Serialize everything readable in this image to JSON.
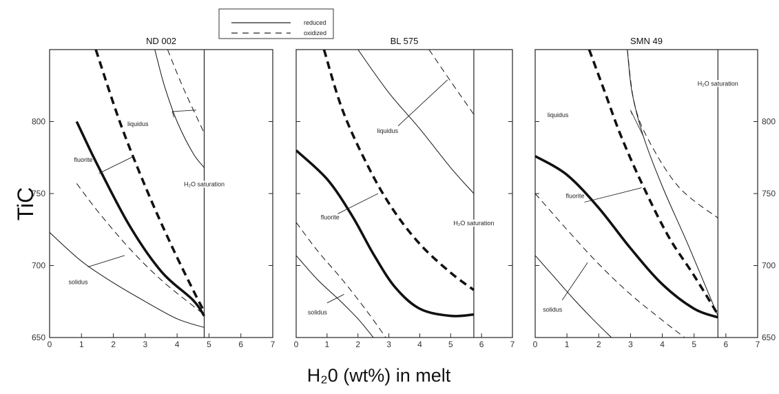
{
  "legend": {
    "reduced": "reduced",
    "oxidized": "oxidized"
  },
  "ylabel": "TiC",
  "xlabel": "H₂0 (wt%) in melt",
  "chart_data": [
    {
      "type": "line",
      "title": "ND 002",
      "xlim": [
        0,
        7
      ],
      "ylim": [
        650,
        850
      ],
      "xticks": [
        "0",
        "1",
        "2",
        "3",
        "4",
        "5",
        "6",
        "7"
      ],
      "yticks": [
        "650",
        "700",
        "750",
        "800"
      ],
      "saturation_x": 4.85,
      "series": [
        {
          "name": "fluorite",
          "style": "reduced",
          "weight": "bold",
          "points": [
            [
              0.85,
              800
            ],
            [
              1.5,
              770
            ],
            [
              2.5,
              728
            ],
            [
              3.5,
              696
            ],
            [
              4.5,
              676
            ],
            [
              4.85,
              665
            ]
          ]
        },
        {
          "name": "fluorite",
          "style": "oxidized",
          "weight": "bold",
          "points": [
            [
              1.45,
              850
            ],
            [
              2.2,
              800
            ],
            [
              3.0,
              755
            ],
            [
              3.8,
              715
            ],
            [
              4.5,
              683
            ],
            [
              4.85,
              668
            ]
          ]
        },
        {
          "name": "solidus",
          "style": "reduced",
          "weight": "thin",
          "points": [
            [
              0,
              723
            ],
            [
              1.0,
              703
            ],
            [
              2.0,
              688
            ],
            [
              3.0,
              675
            ],
            [
              4.0,
              663
            ],
            [
              4.85,
              657
            ]
          ]
        },
        {
          "name": "solidus",
          "style": "oxidized",
          "weight": "thin",
          "points": [
            [
              0.85,
              757
            ],
            [
              1.5,
              738
            ],
            [
              2.5,
              712
            ],
            [
              3.5,
              690
            ],
            [
              4.5,
              672
            ],
            [
              4.85,
              666
            ]
          ]
        },
        {
          "name": "liquidus",
          "style": "reduced",
          "weight": "thin",
          "points": [
            [
              3.3,
              850
            ],
            [
              3.6,
              825
            ],
            [
              4.0,
              800
            ],
            [
              4.5,
              778
            ],
            [
              4.85,
              768
            ]
          ]
        },
        {
          "name": "liquidus",
          "style": "oxidized",
          "weight": "thin",
          "points": [
            [
              3.7,
              850
            ],
            [
              4.2,
              823
            ],
            [
              4.85,
              792
            ]
          ]
        }
      ],
      "annotations": [
        {
          "text": "fluorite",
          "x": 1.35,
          "y": 772,
          "pointers": [
            [
              2.65,
              776
            ],
            [
              1.55,
              764
            ]
          ]
        },
        {
          "text": "solidus",
          "x": 1.2,
          "y": 687,
          "pointers": [
            [
              2.35,
              707
            ],
            [
              1.2,
              699
            ]
          ]
        },
        {
          "text": "liquidus",
          "x": 3.1,
          "y": 797,
          "pointers": [
            [
              3.9,
              803
            ],
            [
              3.85,
              807
            ],
            [
              4.6,
              808
            ]
          ]
        },
        {
          "text": "H₂O saturation",
          "x": 4.85,
          "y": 755
        }
      ]
    },
    {
      "type": "line",
      "title": "BL 575",
      "xlim": [
        0,
        7
      ],
      "ylim": [
        650,
        850
      ],
      "xticks": [
        "0",
        "1",
        "2",
        "3",
        "4",
        "5",
        "6",
        "7"
      ],
      "yticks": [
        "650",
        "700",
        "750",
        "800"
      ],
      "saturation_x": 5.75,
      "series": [
        {
          "name": "fluorite",
          "style": "reduced",
          "weight": "bold",
          "points": [
            [
              0,
              780
            ],
            [
              1.0,
              760
            ],
            [
              1.8,
              735
            ],
            [
              2.5,
              708
            ],
            [
              3.2,
              685
            ],
            [
              4.0,
              670
            ],
            [
              5.0,
              665
            ],
            [
              5.75,
              666
            ]
          ]
        },
        {
          "name": "fluorite",
          "style": "oxidized",
          "weight": "bold",
          "points": [
            [
              0.9,
              850
            ],
            [
              1.5,
              808
            ],
            [
              2.3,
              770
            ],
            [
              3.1,
              740
            ],
            [
              4.0,
              715
            ],
            [
              5.0,
              695
            ],
            [
              5.75,
              683
            ]
          ]
        },
        {
          "name": "solidus",
          "style": "reduced",
          "weight": "thin",
          "points": [
            [
              0,
              707
            ],
            [
              0.7,
              690
            ],
            [
              1.4,
              676
            ],
            [
              2.0,
              663
            ],
            [
              2.5,
              650
            ]
          ]
        },
        {
          "name": "solidus",
          "style": "oxidized",
          "weight": "thin",
          "points": [
            [
              0,
              730
            ],
            [
              0.7,
              710
            ],
            [
              1.5,
              690
            ],
            [
              2.3,
              668
            ],
            [
              2.9,
              650
            ]
          ]
        },
        {
          "name": "liquidus",
          "style": "reduced",
          "weight": "thin",
          "points": [
            [
              2.0,
              850
            ],
            [
              3.0,
              820
            ],
            [
              4.0,
              795
            ],
            [
              5.0,
              768
            ],
            [
              5.75,
              750
            ]
          ]
        },
        {
          "name": "liquidus",
          "style": "oxidized",
          "weight": "thin",
          "points": [
            [
              4.3,
              850
            ],
            [
              5.0,
              828
            ],
            [
              5.75,
              805
            ]
          ]
        }
      ],
      "annotations": [
        {
          "text": "fluorite",
          "x": 1.4,
          "y": 732,
          "pointers": [
            [
              2.65,
              750
            ],
            [
              1.35,
              736
            ]
          ]
        },
        {
          "text": "solidus",
          "x": 1.0,
          "y": 666,
          "pointers": [
            [
              1.55,
              680
            ],
            [
              1.0,
              674
            ]
          ]
        },
        {
          "text": "liquidus",
          "x": 3.3,
          "y": 792,
          "pointers": [
            [
              4.9,
              829
            ],
            [
              3.3,
              797
            ]
          ]
        },
        {
          "text": "H₂O saturation",
          "x": 5.75,
          "y": 728
        }
      ]
    },
    {
      "type": "line",
      "title": "SMN 49",
      "xlim": [
        0,
        7
      ],
      "ylim": [
        650,
        850
      ],
      "xticks": [
        "0",
        "1",
        "2",
        "3",
        "4",
        "5",
        "6",
        "7"
      ],
      "yticks": [
        "650",
        "700",
        "750",
        "800"
      ],
      "saturation_x": 5.75,
      "series": [
        {
          "name": "fluorite",
          "style": "reduced",
          "weight": "bold",
          "points": [
            [
              0,
              776
            ],
            [
              1.0,
              763
            ],
            [
              2.0,
              740
            ],
            [
              3.0,
              712
            ],
            [
              4.0,
              687
            ],
            [
              5.0,
              670
            ],
            [
              5.75,
              664
            ]
          ]
        },
        {
          "name": "fluorite",
          "style": "oxidized",
          "weight": "bold",
          "points": [
            [
              1.7,
              850
            ],
            [
              2.2,
              820
            ],
            [
              2.7,
              790
            ],
            [
              3.4,
              755
            ],
            [
              4.2,
              720
            ],
            [
              5.0,
              693
            ],
            [
              5.75,
              666
            ]
          ]
        },
        {
          "name": "solidus",
          "style": "reduced",
          "weight": "thin",
          "points": [
            [
              0,
              707
            ],
            [
              0.6,
              692
            ],
            [
              1.2,
              677
            ],
            [
              1.8,
              663
            ],
            [
              2.4,
              650
            ]
          ]
        },
        {
          "name": "solidus",
          "style": "oxidized",
          "weight": "thin",
          "points": [
            [
              0,
              750
            ],
            [
              1.0,
              725
            ],
            [
              2.0,
              701
            ],
            [
              3.0,
              680
            ],
            [
              4.0,
              662
            ],
            [
              4.7,
              650
            ]
          ]
        },
        {
          "name": "liquidus",
          "style": "reduced",
          "weight": "thin",
          "points": [
            [
              2.9,
              850
            ],
            [
              3.05,
              820
            ],
            [
              3.4,
              790
            ],
            [
              4.0,
              755
            ],
            [
              4.8,
              715
            ],
            [
              5.75,
              665
            ]
          ]
        },
        {
          "name": "liquidus",
          "style": "oxidized",
          "weight": "thin",
          "points": [
            [
              2.9,
              850
            ],
            [
              3.1,
              815
            ],
            [
              3.5,
              790
            ],
            [
              4.5,
              755
            ],
            [
              5.75,
              733
            ]
          ]
        }
      ],
      "annotations": [
        {
          "text": "fluorite",
          "x": 1.55,
          "y": 747,
          "pointers": [
            [
              3.35,
              754
            ],
            [
              1.55,
              744
            ]
          ]
        },
        {
          "text": "solidus",
          "x": 0.85,
          "y": 668,
          "pointers": [
            [
              1.65,
              702
            ],
            [
              0.85,
              676
            ]
          ]
        },
        {
          "text": "liquidus",
          "x": 1.05,
          "y": 803,
          "pointers": [
            [
              3.05,
              805
            ],
            [
              3.0,
              808
            ],
            [
              3.4,
              790
            ]
          ]
        },
        {
          "text": "H₂O saturation",
          "x": 5.75,
          "y": 825
        }
      ]
    }
  ]
}
